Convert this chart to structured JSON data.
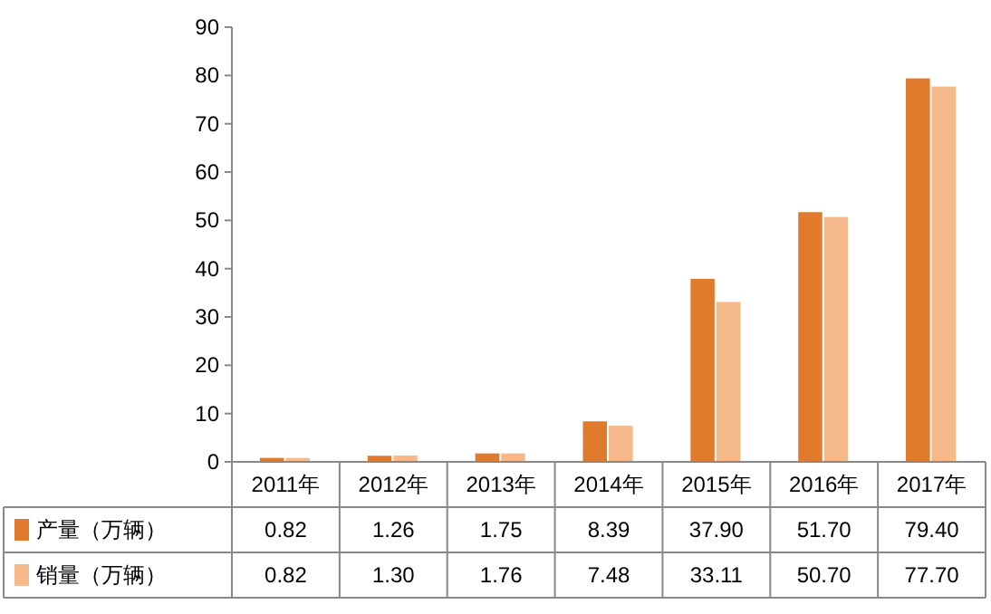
{
  "chart_data": {
    "type": "bar",
    "categories": [
      "2011年",
      "2012年",
      "2013年",
      "2014年",
      "2015年",
      "2016年",
      "2017年"
    ],
    "series": [
      {
        "name": "产量（万辆）",
        "color": "#e07a2c",
        "values": [
          0.82,
          1.26,
          1.75,
          8.39,
          37.9,
          51.7,
          79.4
        ],
        "value_labels": [
          "0.82",
          "1.26",
          "1.75",
          "8.39",
          "37.90",
          "51.70",
          "79.40"
        ]
      },
      {
        "name": "销量（万辆）",
        "color": "#f6b98c",
        "values": [
          0.82,
          1.3,
          1.76,
          7.48,
          33.11,
          50.7,
          77.7
        ],
        "value_labels": [
          "0.82",
          "1.30",
          "1.76",
          "7.48",
          "33.11",
          "50.70",
          "77.70"
        ]
      }
    ],
    "ylim": [
      0,
      90
    ],
    "yticks": [
      0,
      10,
      20,
      30,
      40,
      50,
      60,
      70,
      80,
      90
    ],
    "data_labels": true,
    "legend": "bottom",
    "grid": false
  }
}
